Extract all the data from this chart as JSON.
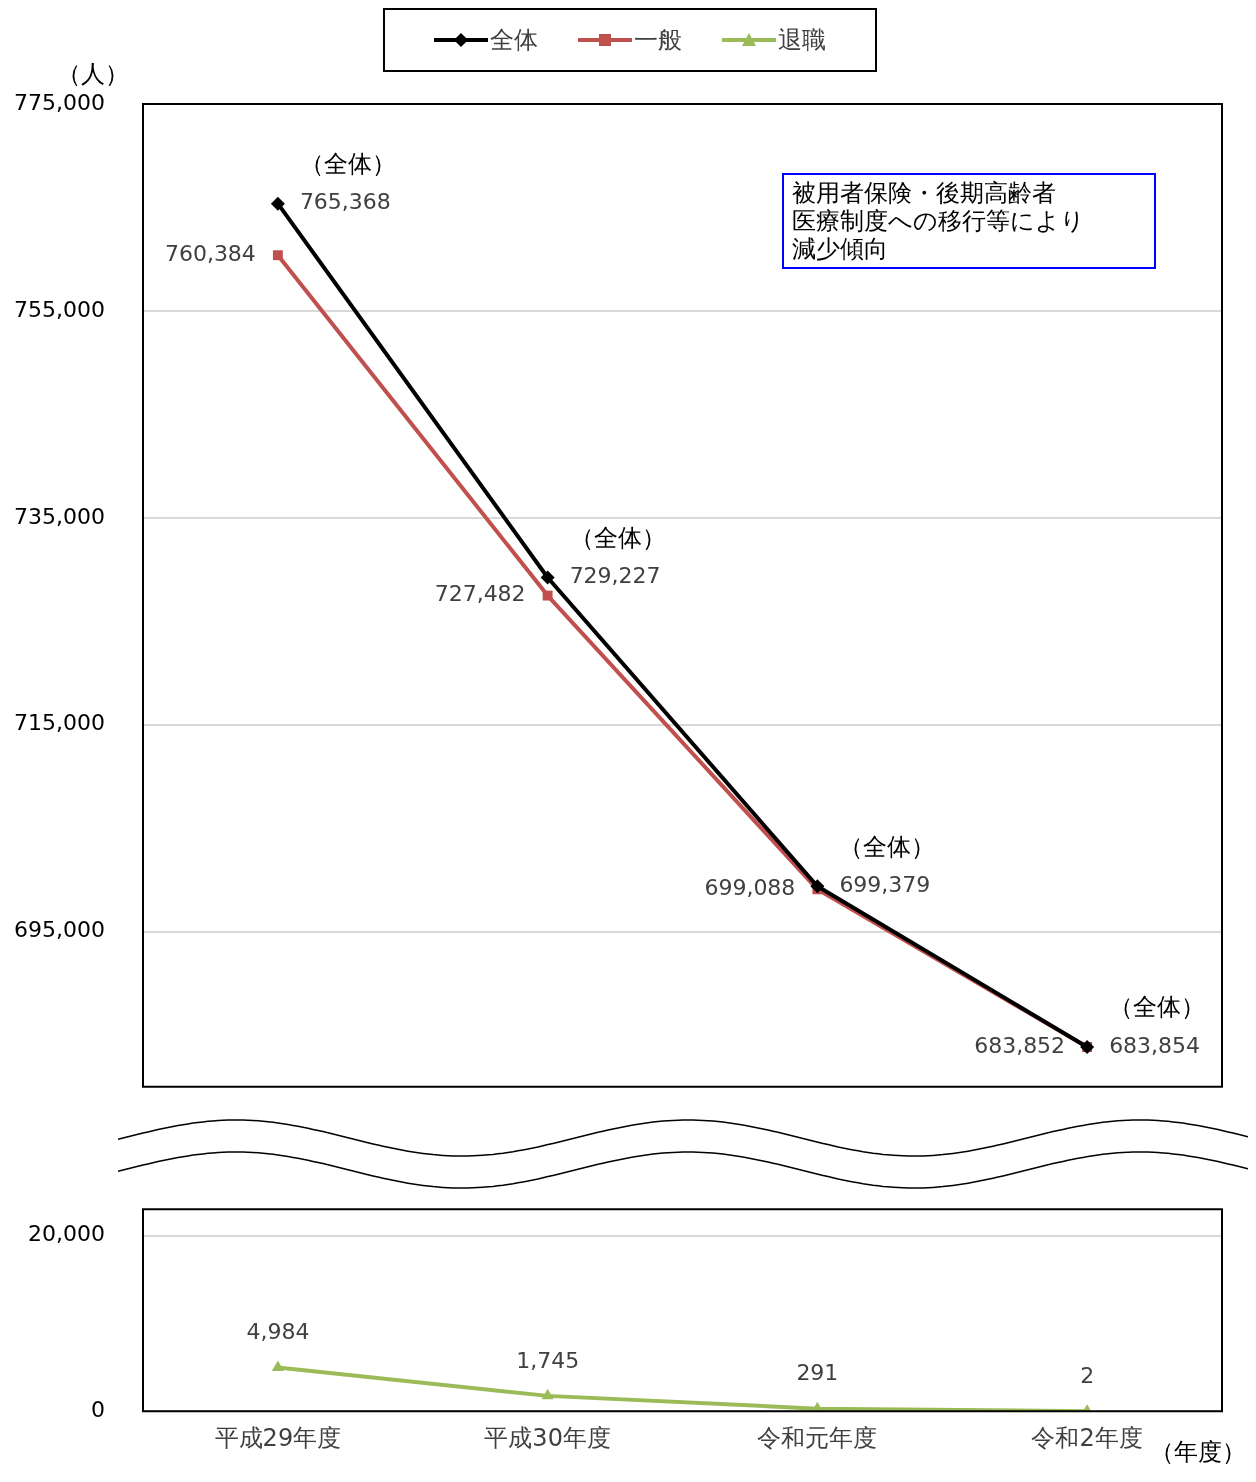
{
  "chart_data": [
    {
      "type": "line",
      "ylabel": "（人）",
      "categories": [
        "平成29年度",
        "平成30年度",
        "令和元年度",
        "令和2年度"
      ],
      "series": [
        {
          "name": "全体",
          "color": "#000000",
          "marker": "diamond",
          "values": [
            765368,
            729227,
            699379,
            683854
          ],
          "value_labels": [
            "765,368",
            "729,227",
            "699,379",
            "683,854"
          ]
        },
        {
          "name": "一般",
          "color": "#c0504d",
          "marker": "square",
          "values": [
            760384,
            727482,
            699088,
            683852
          ],
          "value_labels": [
            "760,384",
            "727,482",
            "699,088",
            "683,852"
          ]
        }
      ],
      "ylim": [
        680000,
        775000
      ],
      "yticks": [
        {
          "value": 695000,
          "label": "695,000"
        },
        {
          "value": 715000,
          "label": "715,000"
        },
        {
          "value": 735000,
          "label": "735,000"
        },
        {
          "value": 755000,
          "label": "755,000"
        },
        {
          "value": 775000,
          "label": "775,000"
        }
      ],
      "grid": "y",
      "tick_labels": "y",
      "legend": "top",
      "annotations": [
        {
          "text": "（全体）",
          "x": "平成29年度",
          "y": 765368
        },
        {
          "text": "（全体）",
          "x": "平成30年度",
          "y": 729227
        },
        {
          "text": "（全体）",
          "x": "令和元年度",
          "y": 699379
        },
        {
          "text": "（全体）",
          "x": "令和2年度",
          "y": 683854
        },
        "被用者保険・後期高齢者",
        "医療制度への移行等により",
        "減少傾向"
      ]
    },
    {
      "type": "line",
      "xlabel": "（年度）",
      "categories": [
        "平成29年度",
        "平成30年度",
        "令和元年度",
        "令和2年度"
      ],
      "series": [
        {
          "name": "退職",
          "color": "#9bbb59",
          "marker": "triangle",
          "values": [
            4984,
            1745,
            291,
            2
          ],
          "value_labels": [
            "4,984",
            "1,745",
            "291",
            "2"
          ]
        }
      ],
      "ylim": [
        0,
        23000
      ],
      "yticks": [
        {
          "value": 0,
          "label": "0"
        },
        {
          "value": 20000,
          "label": "20,000"
        }
      ],
      "grid": "y",
      "legend": "top"
    }
  ]
}
